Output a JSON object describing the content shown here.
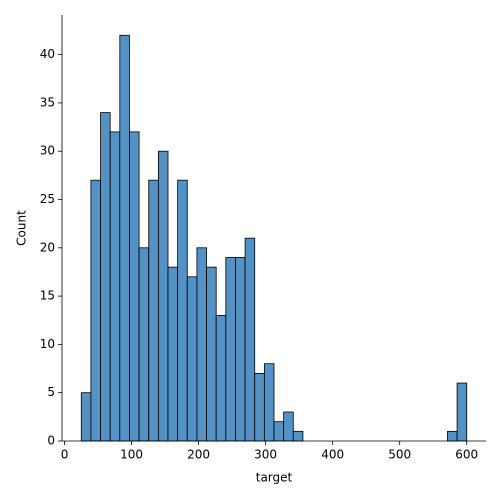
{
  "chart_data": {
    "type": "histogram",
    "x_label": "target",
    "y_label": "Count",
    "bins": [
      25,
      39.375,
      53.75,
      68.125,
      82.5,
      96.875,
      111.25,
      125.625,
      140,
      154.375,
      168.75,
      183.125,
      197.5,
      211.875,
      226.25,
      240.625,
      255,
      269.375,
      283.75,
      298.125,
      312.5,
      326.875,
      341.25,
      355.625,
      370,
      384.375,
      398.75,
      413.125,
      427.5,
      441.875,
      456.25,
      470.625,
      485,
      499.375,
      513.75,
      528.125,
      542.5,
      556.875,
      571.25,
      585.625,
      600
    ],
    "values": [
      5,
      27,
      34,
      32,
      42,
      32,
      20,
      27,
      30,
      18,
      27,
      17,
      20,
      18,
      13,
      19,
      19,
      21,
      7,
      8,
      2,
      3,
      1,
      0,
      0,
      0,
      0,
      0,
      0,
      0,
      0,
      0,
      0,
      0,
      0,
      0,
      0,
      0,
      1,
      6
    ],
    "color": "#5491c4",
    "xlim": [
      -3.75,
      628.75
    ],
    "xticks": [
      0,
      100,
      200,
      300,
      400,
      500,
      600
    ],
    "ylim": [
      0,
      44.1
    ],
    "yticks": [
      0,
      5,
      10,
      15,
      20,
      25,
      30,
      35,
      40
    ]
  }
}
